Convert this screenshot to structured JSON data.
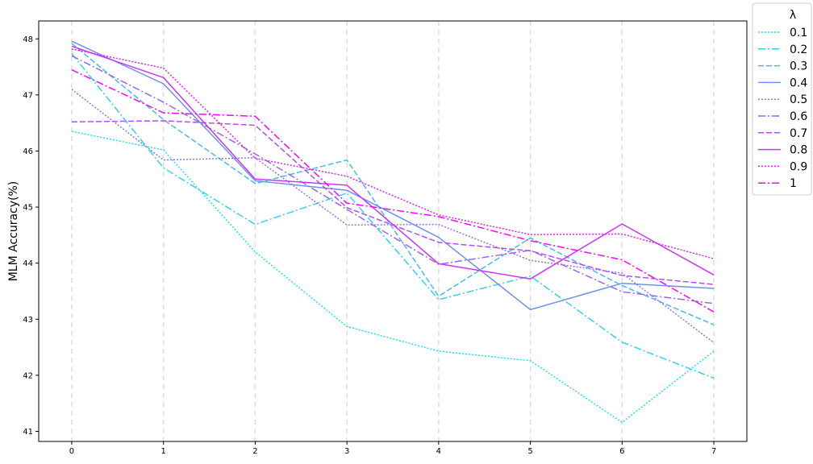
{
  "chart_data": {
    "type": "line",
    "title": "",
    "xlabel": "",
    "ylabel": "MLM Accuracy(%)",
    "x": [
      0,
      1,
      2,
      3,
      4,
      5,
      6,
      7
    ],
    "xlim": [
      -0.36,
      7.36
    ],
    "ylim": [
      40.82,
      48.32
    ],
    "yticks": [
      41,
      42,
      43,
      44,
      45,
      46,
      47,
      48
    ],
    "xgrid": true,
    "ygrid": false,
    "legend": {
      "title": "λ",
      "placement": "outside-top-right"
    },
    "series": [
      {
        "name": "0.1",
        "color": "#1de2f1",
        "style": "dotted",
        "values": [
          46.35,
          46.02,
          44.2,
          42.87,
          42.43,
          42.26,
          41.16,
          42.43
        ]
      },
      {
        "name": "0.2",
        "color": "#2dd2f1",
        "style": "dashdot",
        "values": [
          47.74,
          45.7,
          44.69,
          45.25,
          43.35,
          43.77,
          42.59,
          41.95
        ]
      },
      {
        "name": "0.3",
        "color": "#47b8f1",
        "style": "dashed",
        "values": [
          47.92,
          46.56,
          45.42,
          45.84,
          43.41,
          44.45,
          43.6,
          42.9
        ]
      },
      {
        "name": "0.4",
        "color": "#6e91f2",
        "style": "solid",
        "values": [
          47.96,
          47.2,
          45.47,
          45.3,
          44.46,
          43.17,
          43.64,
          43.55
        ]
      },
      {
        "name": "0.5",
        "color": "#8a75f2",
        "style": "dotted",
        "values": [
          47.1,
          45.84,
          45.88,
          44.68,
          44.69,
          44.05,
          43.82,
          42.58
        ]
      },
      {
        "name": "0.6",
        "color": "#9b64f3",
        "style": "dashdot",
        "values": [
          47.7,
          46.87,
          45.95,
          44.96,
          43.98,
          44.23,
          43.49,
          43.28
        ]
      },
      {
        "name": "0.7",
        "color": "#b14ff3",
        "style": "dashed",
        "values": [
          46.52,
          46.54,
          46.46,
          44.99,
          44.37,
          44.22,
          43.78,
          43.62
        ]
      },
      {
        "name": "0.8",
        "color": "#c836f4",
        "style": "solid",
        "values": [
          47.87,
          47.31,
          45.5,
          45.39,
          43.99,
          43.72,
          44.7,
          43.79
        ]
      },
      {
        "name": "0.9",
        "color": "#e11ff4",
        "style": "dotted",
        "values": [
          47.82,
          47.48,
          45.87,
          45.55,
          44.86,
          44.51,
          44.52,
          44.08
        ]
      },
      {
        "name": "1",
        "color": "#ff00ff",
        "style": "dashdot",
        "values": [
          47.45,
          46.68,
          46.62,
          45.07,
          44.83,
          44.4,
          44.06,
          43.13
        ]
      }
    ]
  }
}
